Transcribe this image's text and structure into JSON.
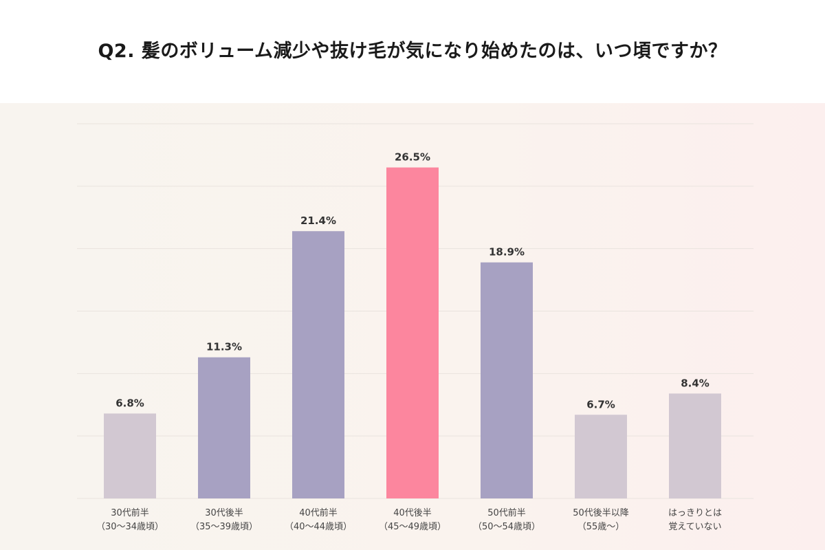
{
  "title": "Q2. 髪のボリューム減少や抜け毛が気になり始めたのは、いつ頃ですか？",
  "colors": {
    "grey": "#d2c8d2",
    "purple": "#a7a1c2",
    "highlight": "#fc869e",
    "gridline": "#e9e3de"
  },
  "chart_data": {
    "type": "bar",
    "categories": [
      [
        "30代前半",
        "（30〜34歳頃）"
      ],
      [
        "30代後半",
        "（35〜39歳頃）"
      ],
      [
        "40代前半",
        "（40〜44歳頃）"
      ],
      [
        "40代後半",
        "（45〜49歳頃）"
      ],
      [
        "50代前半",
        "（50〜54歳頃）"
      ],
      [
        "50代後半以降",
        "（55歳〜）"
      ],
      [
        "はっきりとは",
        "覚えていない"
      ]
    ],
    "values": [
      6.8,
      11.3,
      21.4,
      26.5,
      18.9,
      6.7,
      8.4
    ],
    "value_labels": [
      "6.8%",
      "11.3%",
      "21.4%",
      "26.5%",
      "18.9%",
      "6.7%",
      "8.4%"
    ],
    "bar_colors": [
      "grey",
      "purple",
      "purple",
      "highlight",
      "purple",
      "grey",
      "grey"
    ],
    "ylim": [
      0,
      30
    ],
    "grid": true,
    "legend": "none"
  }
}
